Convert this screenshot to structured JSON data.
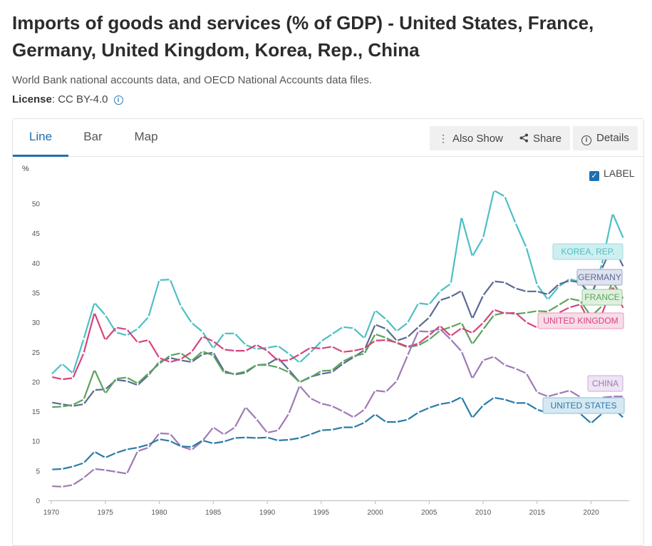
{
  "page": {
    "title": "Imports of goods and services (% of GDP) - United States, France, Germany, United Kingdom, Korea, Rep., China",
    "source": "World Bank national accounts data, and OECD National Accounts data files.",
    "license_label": "License",
    "license_value": ": CC BY-4.0"
  },
  "tabs": [
    {
      "label": "Line",
      "active": true
    },
    {
      "label": "Bar",
      "active": false
    },
    {
      "label": "Map",
      "active": false
    }
  ],
  "toolbar": {
    "also_show": "Also Show",
    "share": "Share",
    "details": "Details"
  },
  "label_toggle": {
    "text": "LABEL",
    "checked": true
  },
  "chart_data": {
    "type": "line",
    "y_unit": "%",
    "xlim": [
      1970,
      2023
    ],
    "ylim": [
      0,
      52
    ],
    "x_ticks": [
      1970,
      1975,
      1980,
      1985,
      1990,
      1995,
      2000,
      2005,
      2010,
      2015,
      2020
    ],
    "y_ticks": [
      0,
      5,
      10,
      15,
      20,
      25,
      30,
      35,
      40,
      45,
      50
    ],
    "x": [
      1970,
      1971,
      1972,
      1973,
      1974,
      1975,
      1976,
      1977,
      1978,
      1979,
      1980,
      1981,
      1982,
      1983,
      1984,
      1985,
      1986,
      1987,
      1988,
      1989,
      1990,
      1991,
      1992,
      1993,
      1994,
      1995,
      1996,
      1997,
      1998,
      1999,
      2000,
      2001,
      2002,
      2003,
      2004,
      2005,
      2006,
      2007,
      2008,
      2009,
      2010,
      2011,
      2012,
      2013,
      2014,
      2015,
      2016,
      2017,
      2018,
      2019,
      2020,
      2021,
      2022,
      2023
    ],
    "series": [
      {
        "name": "KOREA, REP.",
        "color": "#4dbfc4",
        "label_color": "#9ed9dc",
        "label_bg": "#cfeef0",
        "values": [
          21.2,
          23.0,
          21.4,
          27.2,
          33.3,
          31.2,
          28.3,
          27.8,
          28.9,
          30.9,
          37.1,
          37.2,
          32.7,
          29.9,
          28.4,
          25.6,
          28.1,
          28.1,
          26.2,
          25.5,
          25.7,
          26.0,
          24.7,
          23.2,
          24.9,
          26.8,
          28.0,
          29.2,
          29.0,
          27.3,
          32.0,
          30.5,
          28.5,
          29.9,
          33.2,
          33.0,
          35.2,
          36.5,
          47.7,
          41.1,
          44.2,
          52.2,
          51.2,
          46.7,
          42.6,
          36.3,
          33.8,
          36.0,
          37.3,
          36.8,
          34.0,
          39.8,
          48.3,
          44.1
        ]
      },
      {
        "name": "GERMANY",
        "color": "#5a6a92",
        "label_color": "#9ea6c6",
        "label_bg": "#dfe2ef",
        "values": [
          16.5,
          16.2,
          15.9,
          16.2,
          18.6,
          18.7,
          20.3,
          20.1,
          19.4,
          21.1,
          23.3,
          24.0,
          23.6,
          23.3,
          24.6,
          24.9,
          21.8,
          21.2,
          21.5,
          22.8,
          22.9,
          24.0,
          22.0,
          19.9,
          20.8,
          21.3,
          21.6,
          23.0,
          24.1,
          25.3,
          29.6,
          28.9,
          26.9,
          27.5,
          29.2,
          30.8,
          33.7,
          34.3,
          35.3,
          30.6,
          34.5,
          36.9,
          36.7,
          35.7,
          35.2,
          35.2,
          34.7,
          36.4,
          37.0,
          36.7,
          34.6,
          39.0,
          43.0,
          39.3
        ]
      },
      {
        "name": "FRANCE",
        "color": "#5ba35c",
        "label_color": "#96c998",
        "label_bg": "#dff0df",
        "values": [
          15.7,
          15.8,
          16.1,
          17.0,
          22.0,
          18.0,
          20.5,
          20.7,
          19.7,
          21.4,
          23.0,
          24.4,
          24.8,
          23.5,
          25.1,
          24.4,
          21.5,
          21.3,
          21.7,
          22.8,
          22.8,
          22.4,
          21.6,
          19.9,
          20.7,
          21.8,
          21.9,
          23.4,
          24.3,
          24.7,
          28.0,
          27.4,
          26.5,
          25.8,
          26.1,
          27.1,
          28.6,
          29.2,
          29.9,
          26.3,
          28.8,
          31.2,
          31.6,
          31.4,
          31.6,
          31.9,
          31.8,
          32.9,
          34.0,
          33.6,
          31.0,
          32.7,
          36.8,
          33.9
        ]
      },
      {
        "name": "UNITED KINGDOM",
        "color": "#d6437e",
        "label_color": "#e898b8",
        "label_bg": "#f8dce7",
        "values": [
          20.8,
          20.4,
          20.6,
          24.8,
          31.6,
          27.0,
          29.1,
          28.8,
          26.6,
          27.0,
          24.0,
          23.3,
          23.8,
          25.0,
          27.6,
          26.8,
          25.4,
          25.2,
          25.2,
          26.2,
          25.2,
          23.5,
          23.6,
          24.6,
          25.7,
          25.6,
          25.9,
          25.0,
          25.2,
          25.6,
          26.9,
          27.0,
          26.6,
          25.9,
          26.4,
          27.8,
          29.4,
          27.7,
          29.0,
          28.2,
          29.9,
          32.1,
          31.5,
          31.6,
          30.0,
          29.1,
          30.2,
          31.6,
          32.5,
          33.0,
          29.6,
          31.4,
          36.0,
          32.3
        ]
      },
      {
        "name": "CHINA",
        "color": "#9d7ab5",
        "label_color": "#c6aed6",
        "label_bg": "#eee4f4",
        "values": [
          2.4,
          2.3,
          2.6,
          3.8,
          5.3,
          5.1,
          4.8,
          4.5,
          8.3,
          8.9,
          11.3,
          11.2,
          9.1,
          8.5,
          10.0,
          12.3,
          11.1,
          12.3,
          15.7,
          13.7,
          11.4,
          11.8,
          14.6,
          19.3,
          17.2,
          16.3,
          15.9,
          15.0,
          14.0,
          15.3,
          18.5,
          18.3,
          20.1,
          24.4,
          28.5,
          28.4,
          28.9,
          27.1,
          25.1,
          20.5,
          23.6,
          24.2,
          22.8,
          22.2,
          21.4,
          18.2,
          17.5,
          18.0,
          18.5,
          17.4,
          16.0,
          17.3,
          17.5,
          17.5
        ]
      },
      {
        "name": "UNITED STATES",
        "color": "#2a7aa8",
        "label_color": "#8fbfd9",
        "label_bg": "#d6e9f3",
        "values": [
          5.2,
          5.3,
          5.7,
          6.3,
          8.2,
          7.2,
          8.0,
          8.6,
          8.9,
          9.4,
          10.3,
          10.0,
          9.1,
          9.0,
          10.1,
          9.6,
          9.9,
          10.5,
          10.6,
          10.5,
          10.6,
          10.1,
          10.2,
          10.5,
          11.1,
          11.8,
          11.9,
          12.3,
          12.3,
          13.1,
          14.5,
          13.2,
          13.2,
          13.6,
          14.8,
          15.6,
          16.2,
          16.5,
          17.4,
          13.9,
          16.0,
          17.3,
          17.0,
          16.4,
          16.4,
          15.3,
          14.7,
          15.0,
          15.3,
          14.6,
          13.0,
          14.6,
          15.6,
          13.9
        ]
      }
    ]
  }
}
